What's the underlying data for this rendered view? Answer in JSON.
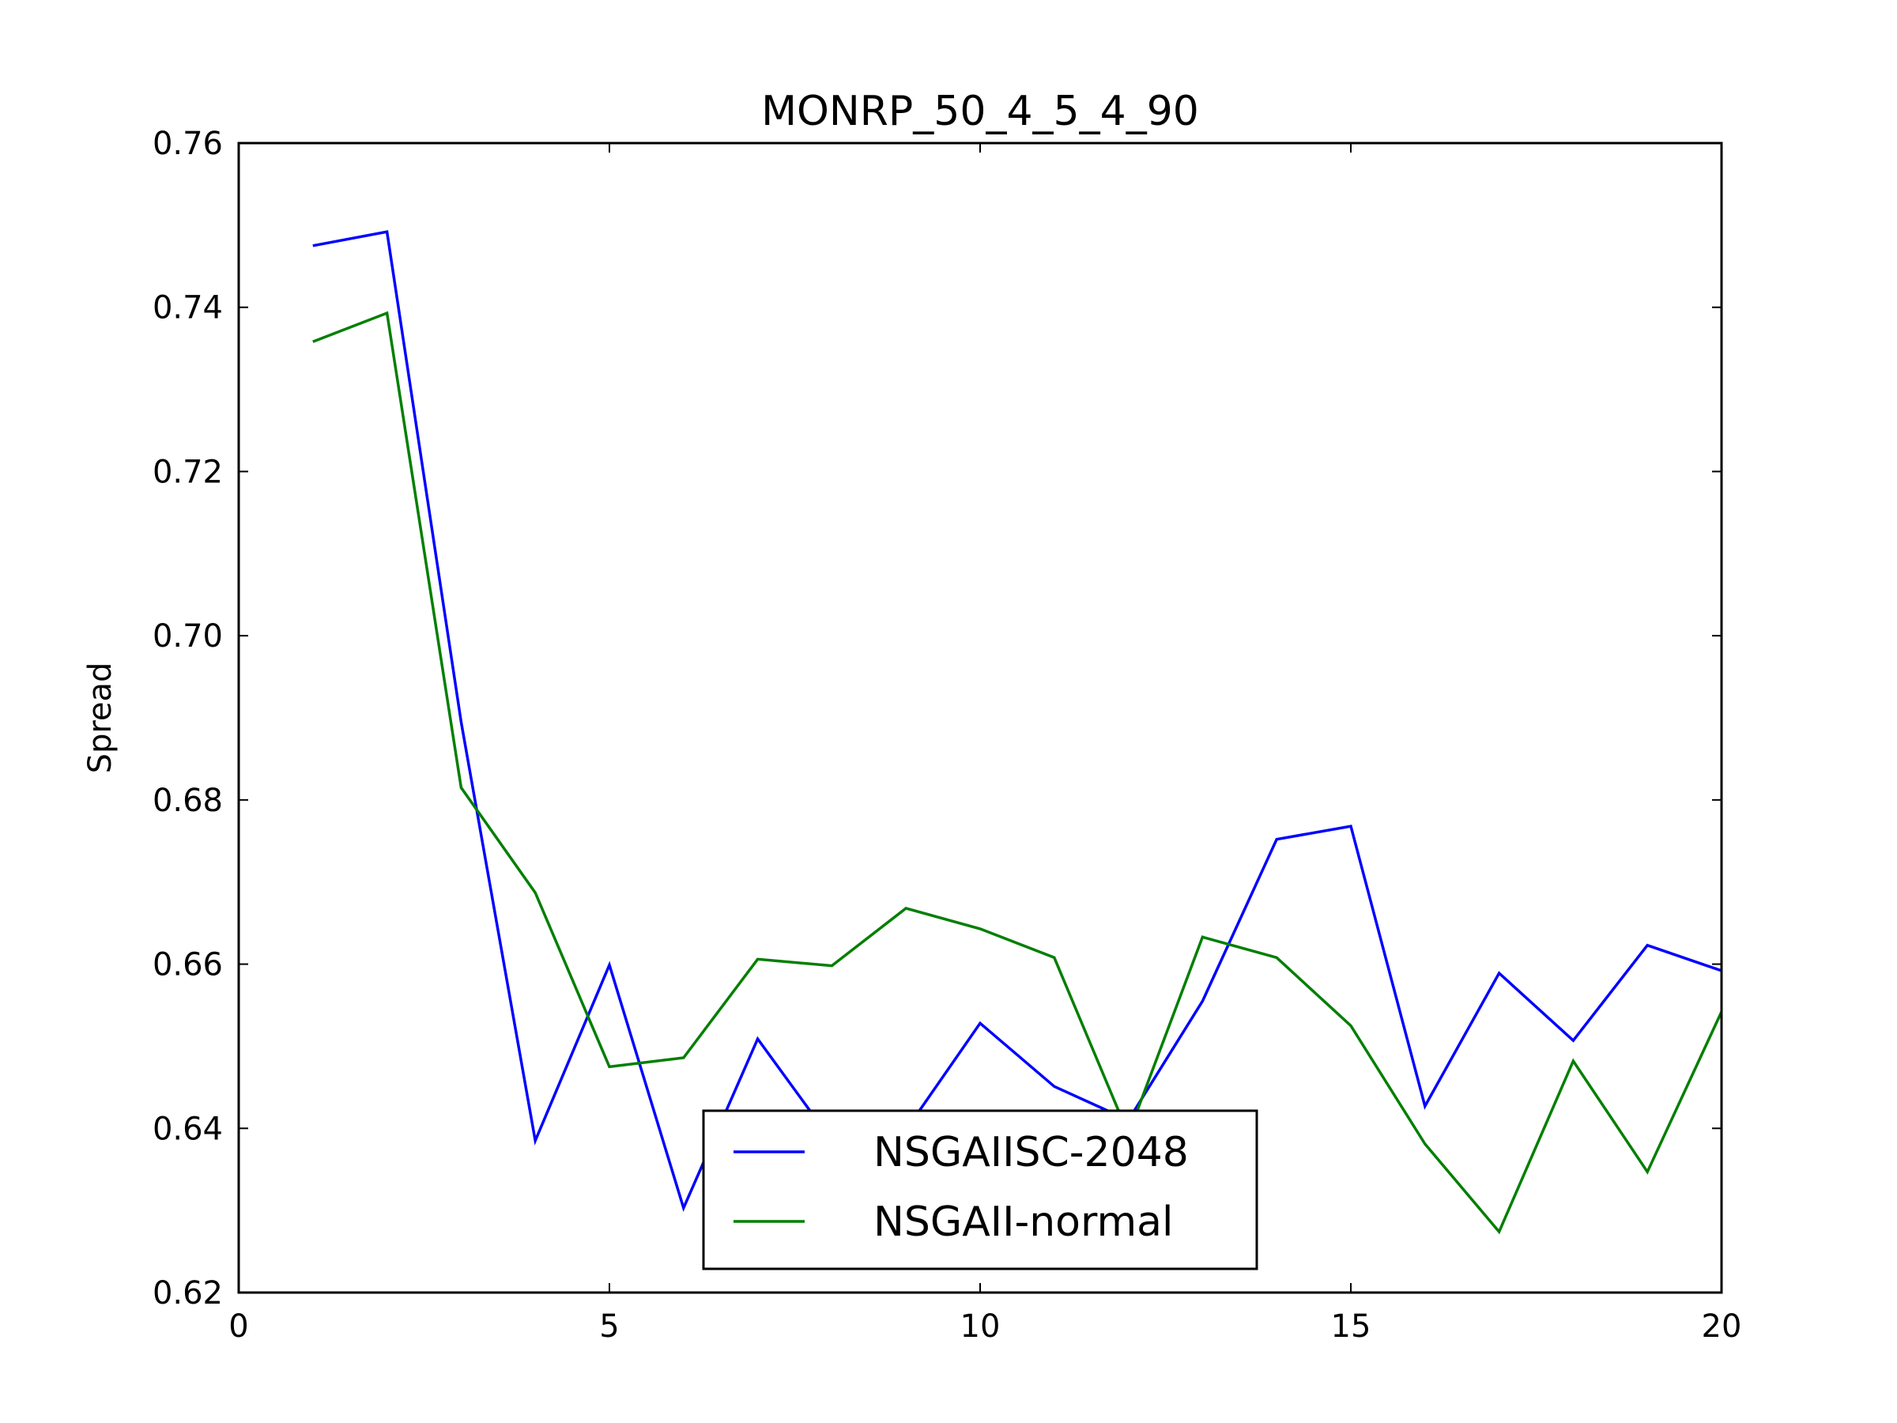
{
  "chart_data": {
    "type": "line",
    "title": "MONRP_50_4_5_4_90",
    "xlabel": "",
    "ylabel": "Spread",
    "xlim": [
      0,
      20
    ],
    "ylim": [
      0.62,
      0.76
    ],
    "xticks": [
      "0",
      "5",
      "10",
      "15",
      "20"
    ],
    "yticks": [
      "0.62",
      "0.64",
      "0.66",
      "0.68",
      "0.70",
      "0.72",
      "0.74",
      "0.76"
    ],
    "legend_position": "lower-center",
    "grid": false,
    "x": [
      1,
      2,
      3,
      4,
      5,
      6,
      7,
      8,
      9,
      10,
      11,
      12,
      13,
      14,
      15,
      16,
      17,
      18,
      19,
      20
    ],
    "series": [
      {
        "name": "NSGAIISC-2048",
        "color": "#0000ff",
        "values": [
          0.7475,
          0.7492,
          0.6895,
          0.6385,
          0.6599,
          0.6303,
          0.6509,
          0.6385,
          0.6398,
          0.6528,
          0.6451,
          0.641,
          0.6555,
          0.6752,
          0.6768,
          0.6427,
          0.6589,
          0.6507,
          0.6623,
          0.6592
        ]
      },
      {
        "name": "NSGAII-normal",
        "color": "#007f00",
        "values": [
          0.7358,
          0.7393,
          0.6815,
          0.6687,
          0.6475,
          0.6486,
          0.6606,
          0.6598,
          0.6668,
          0.6643,
          0.6608,
          0.6393,
          0.6633,
          0.6608,
          0.6525,
          0.6381,
          0.6274,
          0.6482,
          0.6347,
          0.6542
        ]
      }
    ]
  }
}
